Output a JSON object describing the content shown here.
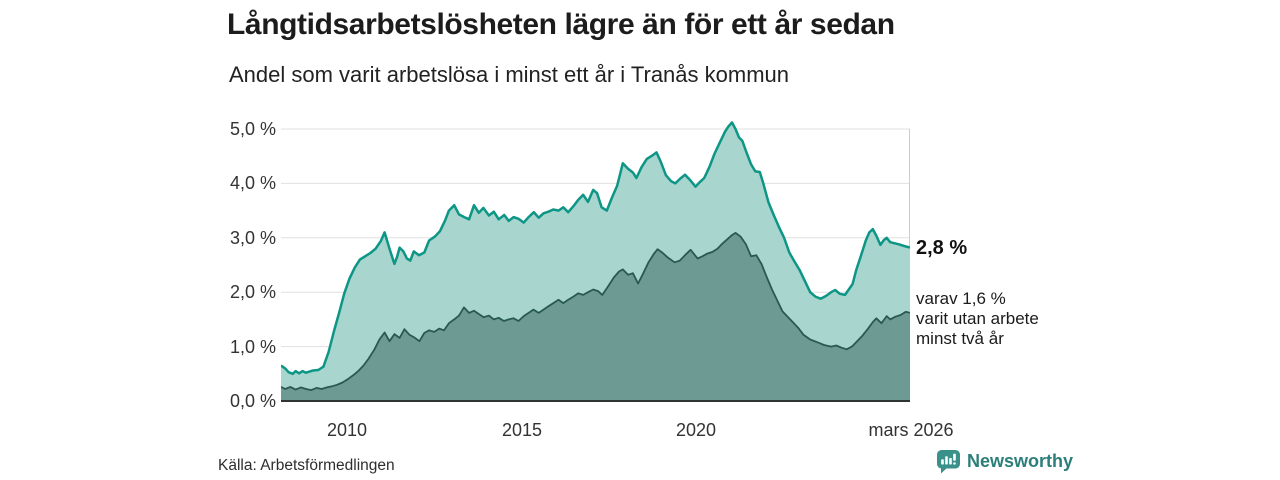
{
  "header": {
    "title": "Långtidsarbetslösheten lägre än för ett år sedan",
    "subtitle": "Andel som varit arbetslösa i minst ett år i Tranås kommun"
  },
  "chart_data": {
    "type": "area",
    "title": "Långtidsarbetslösheten lägre än för ett år sedan",
    "subtitle": "Andel som varit arbetslösa i minst ett år i Tranås kommun",
    "x_domain": [
      2008.08,
      2026.17
    ],
    "y_domain": [
      0,
      5.4
    ],
    "grid": true,
    "grid_color": "#e0e0e0",
    "axis_color": "#2e3533",
    "border_color": "#cccccc",
    "y_ticks": [
      {
        "label": "5,0 %",
        "value": 5.0
      },
      {
        "label": "4,0 %",
        "value": 4.0
      },
      {
        "label": "3,0 %",
        "value": 3.0
      },
      {
        "label": "2,0 %",
        "value": 2.0
      },
      {
        "label": "1,0 %",
        "value": 1.0
      },
      {
        "label": "0,0 %",
        "value": 0.0
      }
    ],
    "x_ticks": [
      {
        "label": "2010",
        "value": 2010
      },
      {
        "label": "2015",
        "value": 2015
      },
      {
        "label": "2020",
        "value": 2020
      },
      {
        "label": "mars 2026",
        "value": 2026.17
      }
    ],
    "series": [
      {
        "name": "Arbetslösa minst ett år",
        "end_label": "2,8 %",
        "end_value": 2.8,
        "line_color": "#0d9686",
        "fill_color": "#a8d5cd",
        "line_width": 2.5,
        "points": [
          [
            2008.08,
            0.65
          ],
          [
            2008.2,
            0.6
          ],
          [
            2008.3,
            0.53
          ],
          [
            2008.42,
            0.5
          ],
          [
            2008.5,
            0.55
          ],
          [
            2008.6,
            0.51
          ],
          [
            2008.7,
            0.55
          ],
          [
            2008.8,
            0.52
          ],
          [
            2008.9,
            0.54
          ],
          [
            2009.0,
            0.56
          ],
          [
            2009.15,
            0.57
          ],
          [
            2009.3,
            0.63
          ],
          [
            2009.45,
            0.9
          ],
          [
            2009.6,
            1.28
          ],
          [
            2009.75,
            1.62
          ],
          [
            2009.9,
            1.98
          ],
          [
            2010.05,
            2.25
          ],
          [
            2010.2,
            2.45
          ],
          [
            2010.35,
            2.6
          ],
          [
            2010.5,
            2.66
          ],
          [
            2010.65,
            2.72
          ],
          [
            2010.8,
            2.8
          ],
          [
            2010.95,
            2.94
          ],
          [
            2011.06,
            3.1
          ],
          [
            2011.2,
            2.8
          ],
          [
            2011.34,
            2.52
          ],
          [
            2011.42,
            2.65
          ],
          [
            2011.49,
            2.82
          ],
          [
            2011.6,
            2.75
          ],
          [
            2011.7,
            2.62
          ],
          [
            2011.8,
            2.58
          ],
          [
            2011.9,
            2.75
          ],
          [
            2012.05,
            2.68
          ],
          [
            2012.2,
            2.73
          ],
          [
            2012.34,
            2.95
          ],
          [
            2012.5,
            3.02
          ],
          [
            2012.65,
            3.12
          ],
          [
            2012.8,
            3.32
          ],
          [
            2012.91,
            3.5
          ],
          [
            2013.06,
            3.6
          ],
          [
            2013.2,
            3.43
          ],
          [
            2013.35,
            3.38
          ],
          [
            2013.49,
            3.34
          ],
          [
            2013.63,
            3.6
          ],
          [
            2013.77,
            3.46
          ],
          [
            2013.9,
            3.55
          ],
          [
            2014.06,
            3.41
          ],
          [
            2014.2,
            3.48
          ],
          [
            2014.34,
            3.34
          ],
          [
            2014.5,
            3.42
          ],
          [
            2014.63,
            3.31
          ],
          [
            2014.77,
            3.38
          ],
          [
            2014.91,
            3.35
          ],
          [
            2015.06,
            3.28
          ],
          [
            2015.2,
            3.38
          ],
          [
            2015.35,
            3.47
          ],
          [
            2015.49,
            3.37
          ],
          [
            2015.63,
            3.45
          ],
          [
            2015.77,
            3.48
          ],
          [
            2015.91,
            3.52
          ],
          [
            2016.06,
            3.5
          ],
          [
            2016.2,
            3.56
          ],
          [
            2016.34,
            3.47
          ],
          [
            2016.49,
            3.58
          ],
          [
            2016.63,
            3.7
          ],
          [
            2016.77,
            3.79
          ],
          [
            2016.91,
            3.66
          ],
          [
            2017.06,
            3.88
          ],
          [
            2017.17,
            3.82
          ],
          [
            2017.3,
            3.56
          ],
          [
            2017.45,
            3.5
          ],
          [
            2017.6,
            3.74
          ],
          [
            2017.75,
            3.96
          ],
          [
            2017.91,
            4.37
          ],
          [
            2018.06,
            4.27
          ],
          [
            2018.2,
            4.2
          ],
          [
            2018.3,
            4.1
          ],
          [
            2018.45,
            4.3
          ],
          [
            2018.6,
            4.45
          ],
          [
            2018.75,
            4.51
          ],
          [
            2018.88,
            4.57
          ],
          [
            2019.0,
            4.4
          ],
          [
            2019.15,
            4.15
          ],
          [
            2019.3,
            4.04
          ],
          [
            2019.42,
            4.0
          ],
          [
            2019.55,
            4.08
          ],
          [
            2019.7,
            4.16
          ],
          [
            2019.85,
            4.06
          ],
          [
            2020.0,
            3.94
          ],
          [
            2020.12,
            4.02
          ],
          [
            2020.25,
            4.1
          ],
          [
            2020.4,
            4.3
          ],
          [
            2020.55,
            4.55
          ],
          [
            2020.7,
            4.75
          ],
          [
            2020.85,
            4.95
          ],
          [
            2020.95,
            5.05
          ],
          [
            2021.05,
            5.12
          ],
          [
            2021.15,
            5.0
          ],
          [
            2021.25,
            4.85
          ],
          [
            2021.35,
            4.78
          ],
          [
            2021.45,
            4.6
          ],
          [
            2021.6,
            4.35
          ],
          [
            2021.72,
            4.22
          ],
          [
            2021.85,
            4.21
          ],
          [
            2021.95,
            4.0
          ],
          [
            2022.1,
            3.65
          ],
          [
            2022.25,
            3.42
          ],
          [
            2022.4,
            3.2
          ],
          [
            2022.55,
            3.0
          ],
          [
            2022.7,
            2.73
          ],
          [
            2022.85,
            2.56
          ],
          [
            2023.0,
            2.4
          ],
          [
            2023.15,
            2.2
          ],
          [
            2023.3,
            2.0
          ],
          [
            2023.45,
            1.92
          ],
          [
            2023.6,
            1.88
          ],
          [
            2023.75,
            1.93
          ],
          [
            2023.9,
            2.0
          ],
          [
            2024.02,
            2.04
          ],
          [
            2024.15,
            1.97
          ],
          [
            2024.3,
            1.95
          ],
          [
            2024.42,
            2.06
          ],
          [
            2024.52,
            2.15
          ],
          [
            2024.62,
            2.4
          ],
          [
            2024.75,
            2.65
          ],
          [
            2024.9,
            2.95
          ],
          [
            2025.0,
            3.1
          ],
          [
            2025.1,
            3.16
          ],
          [
            2025.2,
            3.04
          ],
          [
            2025.32,
            2.87
          ],
          [
            2025.42,
            2.96
          ],
          [
            2025.5,
            3.0
          ],
          [
            2025.6,
            2.92
          ],
          [
            2025.72,
            2.9
          ],
          [
            2025.85,
            2.88
          ],
          [
            2026.0,
            2.85
          ],
          [
            2026.17,
            2.82
          ]
        ]
      },
      {
        "name": "varav utan arbete minst två år",
        "end_label": "varav 1,6 %",
        "end_value": 1.6,
        "line_color": "#285a52",
        "fill_color": "#6d9b94",
        "line_width": 1.8,
        "points": [
          [
            2008.08,
            0.26
          ],
          [
            2008.2,
            0.22
          ],
          [
            2008.35,
            0.26
          ],
          [
            2008.5,
            0.21
          ],
          [
            2008.65,
            0.25
          ],
          [
            2008.8,
            0.22
          ],
          [
            2008.95,
            0.2
          ],
          [
            2009.1,
            0.24
          ],
          [
            2009.25,
            0.22
          ],
          [
            2009.4,
            0.25
          ],
          [
            2009.55,
            0.27
          ],
          [
            2009.7,
            0.3
          ],
          [
            2009.85,
            0.34
          ],
          [
            2010.0,
            0.4
          ],
          [
            2010.15,
            0.47
          ],
          [
            2010.3,
            0.55
          ],
          [
            2010.45,
            0.65
          ],
          [
            2010.6,
            0.78
          ],
          [
            2010.77,
            0.95
          ],
          [
            2010.91,
            1.13
          ],
          [
            2011.06,
            1.26
          ],
          [
            2011.2,
            1.1
          ],
          [
            2011.34,
            1.23
          ],
          [
            2011.49,
            1.16
          ],
          [
            2011.63,
            1.32
          ],
          [
            2011.77,
            1.22
          ],
          [
            2011.91,
            1.17
          ],
          [
            2012.06,
            1.1
          ],
          [
            2012.2,
            1.25
          ],
          [
            2012.34,
            1.3
          ],
          [
            2012.49,
            1.27
          ],
          [
            2012.63,
            1.33
          ],
          [
            2012.77,
            1.3
          ],
          [
            2012.91,
            1.43
          ],
          [
            2013.06,
            1.5
          ],
          [
            2013.2,
            1.57
          ],
          [
            2013.34,
            1.72
          ],
          [
            2013.49,
            1.62
          ],
          [
            2013.63,
            1.66
          ],
          [
            2013.77,
            1.6
          ],
          [
            2013.91,
            1.54
          ],
          [
            2014.06,
            1.57
          ],
          [
            2014.2,
            1.5
          ],
          [
            2014.34,
            1.53
          ],
          [
            2014.49,
            1.47
          ],
          [
            2014.63,
            1.5
          ],
          [
            2014.77,
            1.52
          ],
          [
            2014.91,
            1.47
          ],
          [
            2015.06,
            1.56
          ],
          [
            2015.2,
            1.62
          ],
          [
            2015.34,
            1.68
          ],
          [
            2015.49,
            1.62
          ],
          [
            2015.63,
            1.68
          ],
          [
            2015.77,
            1.74
          ],
          [
            2015.91,
            1.8
          ],
          [
            2016.06,
            1.86
          ],
          [
            2016.2,
            1.8
          ],
          [
            2016.34,
            1.86
          ],
          [
            2016.49,
            1.92
          ],
          [
            2016.63,
            1.98
          ],
          [
            2016.77,
            1.95
          ],
          [
            2016.91,
            2.0
          ],
          [
            2017.06,
            2.05
          ],
          [
            2017.2,
            2.02
          ],
          [
            2017.32,
            1.95
          ],
          [
            2017.5,
            2.12
          ],
          [
            2017.65,
            2.27
          ],
          [
            2017.8,
            2.38
          ],
          [
            2017.91,
            2.42
          ],
          [
            2018.06,
            2.32
          ],
          [
            2018.2,
            2.35
          ],
          [
            2018.35,
            2.16
          ],
          [
            2018.5,
            2.35
          ],
          [
            2018.65,
            2.55
          ],
          [
            2018.8,
            2.7
          ],
          [
            2018.91,
            2.79
          ],
          [
            2019.06,
            2.72
          ],
          [
            2019.2,
            2.64
          ],
          [
            2019.4,
            2.55
          ],
          [
            2019.55,
            2.58
          ],
          [
            2019.7,
            2.68
          ],
          [
            2019.86,
            2.78
          ],
          [
            2020.06,
            2.62
          ],
          [
            2020.2,
            2.66
          ],
          [
            2020.34,
            2.71
          ],
          [
            2020.49,
            2.74
          ],
          [
            2020.63,
            2.8
          ],
          [
            2020.77,
            2.89
          ],
          [
            2020.91,
            2.97
          ],
          [
            2021.05,
            3.05
          ],
          [
            2021.15,
            3.09
          ],
          [
            2021.3,
            3.02
          ],
          [
            2021.45,
            2.88
          ],
          [
            2021.6,
            2.66
          ],
          [
            2021.75,
            2.68
          ],
          [
            2021.9,
            2.52
          ],
          [
            2022.05,
            2.28
          ],
          [
            2022.2,
            2.05
          ],
          [
            2022.35,
            1.85
          ],
          [
            2022.5,
            1.65
          ],
          [
            2022.65,
            1.55
          ],
          [
            2022.8,
            1.45
          ],
          [
            2022.95,
            1.35
          ],
          [
            2023.1,
            1.22
          ],
          [
            2023.3,
            1.13
          ],
          [
            2023.5,
            1.08
          ],
          [
            2023.7,
            1.03
          ],
          [
            2023.9,
            1.0
          ],
          [
            2024.05,
            1.02
          ],
          [
            2024.2,
            0.98
          ],
          [
            2024.35,
            0.95
          ],
          [
            2024.5,
            1.0
          ],
          [
            2024.65,
            1.1
          ],
          [
            2024.8,
            1.2
          ],
          [
            2024.95,
            1.32
          ],
          [
            2025.1,
            1.45
          ],
          [
            2025.2,
            1.52
          ],
          [
            2025.35,
            1.43
          ],
          [
            2025.5,
            1.56
          ],
          [
            2025.6,
            1.5
          ],
          [
            2025.75,
            1.55
          ],
          [
            2025.9,
            1.58
          ],
          [
            2026.05,
            1.64
          ],
          [
            2026.17,
            1.62
          ]
        ]
      }
    ],
    "legend_position": "right-annotations"
  },
  "annotations": {
    "primary": "2,8 %",
    "secondary_line1": "varav 1,6 %",
    "secondary_line2": "varit utan arbete",
    "secondary_line3": "minst två år"
  },
  "footer": {
    "source": "Källa: Arbetsförmedlingen",
    "brand": "Newsworthy",
    "brand_color": "#2b7e79",
    "icon_color": "#3a918a",
    "icon_name": "newsworthy-bar-chart-bubble-icon"
  }
}
